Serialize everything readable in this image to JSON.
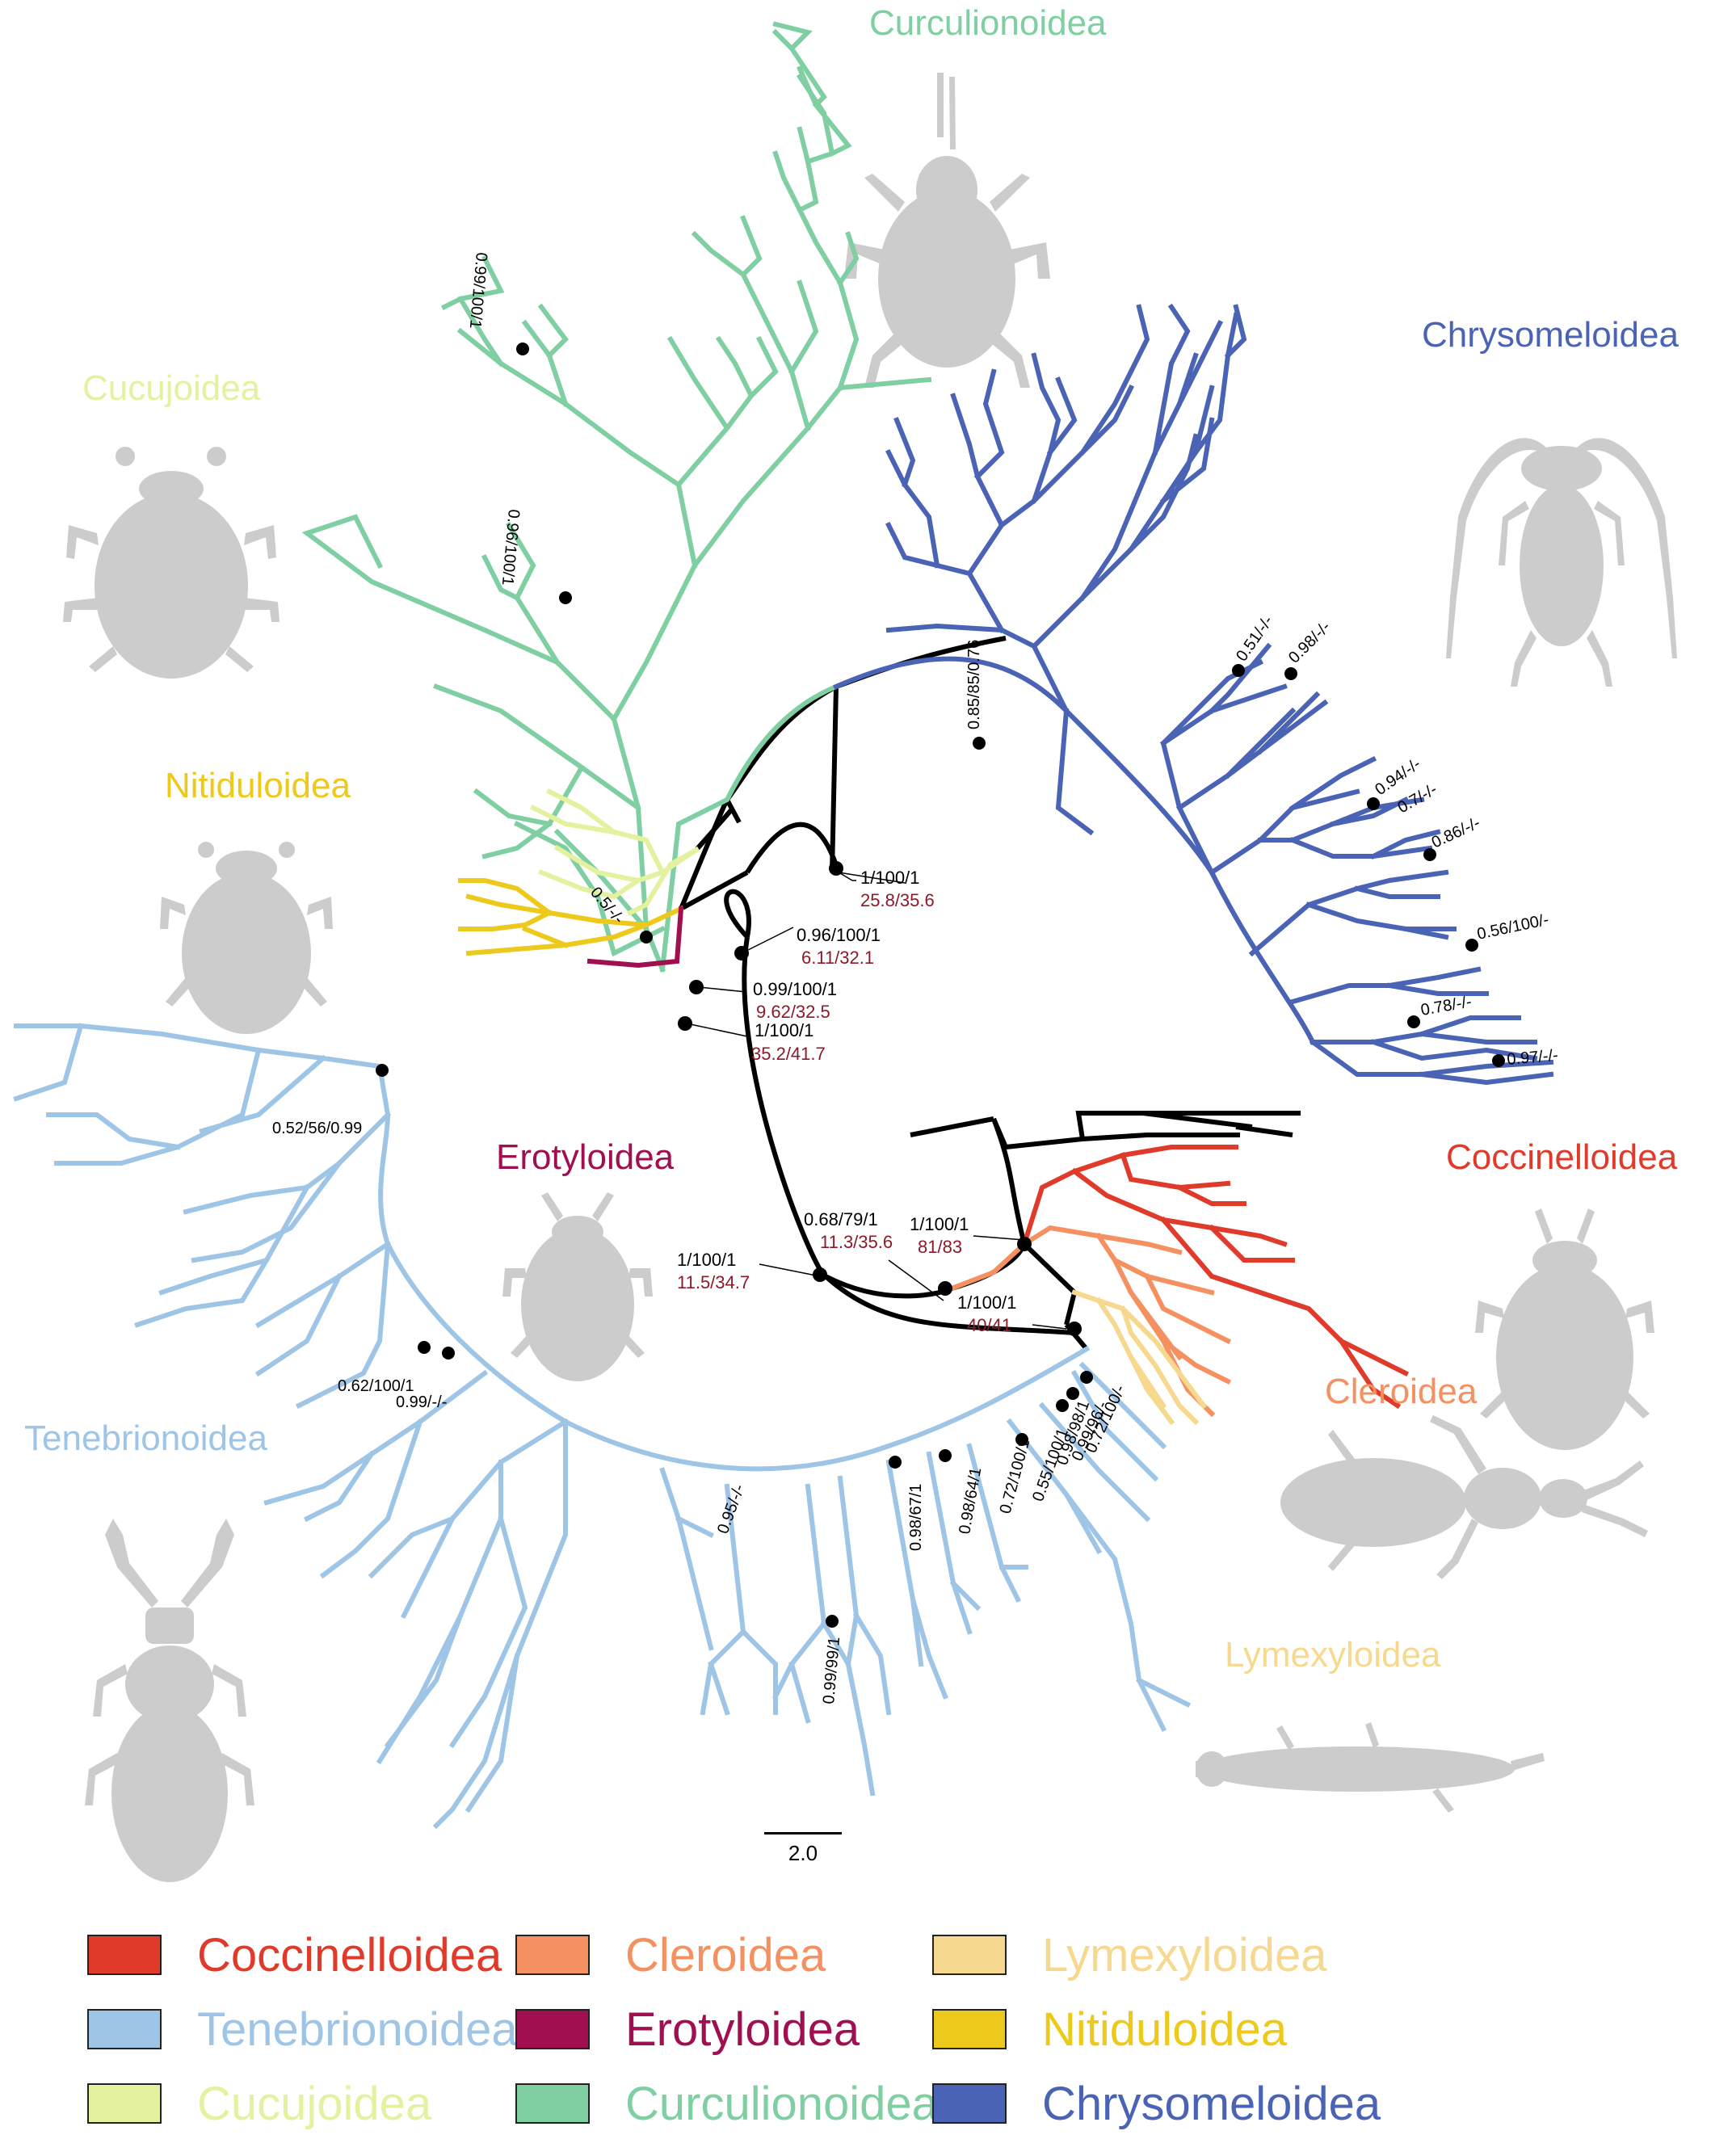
{
  "colors": {
    "coccinelloidea": "#e03a2b",
    "cleroidea": "#f59060",
    "lymexyloidea": "#f6d98e",
    "tenebrionoidea": "#9ec4e6",
    "erotyloidea": "#a01050",
    "nitiduloidea": "#ecc91a",
    "cucujoidea": "#e4f2a0",
    "curculionoidea": "#7fcfa2",
    "chrysomeloidea": "#4a63b5",
    "backbone": "#000000",
    "support_red": "#8b1a2a",
    "silhouette": "#cccccc"
  },
  "clade_labels": {
    "curculionoidea": "Curculionoidea",
    "chrysomeloidea": "Chrysomeloidea",
    "cucujoidea": "Cucujoidea",
    "nitiduloidea": "Nitiduloidea",
    "erotyloidea": "Erotyloidea",
    "coccinelloidea": "Coccinelloidea",
    "cleroidea": "Cleroidea",
    "tenebrionoidea": "Tenebrionoidea",
    "lymexyloidea": "Lymexyloidea"
  },
  "node_support": {
    "n1": {
      "black": "1/100/1",
      "red": "25.8/35.6"
    },
    "n2": {
      "black": "0.96/100/1",
      "red": "6.11/32.1"
    },
    "n3": {
      "black": "0.99/100/1",
      "red": "9.62/32.5"
    },
    "n4": {
      "black": "1/100/1",
      "red": "35.2/41.7"
    },
    "n5": {
      "black": "0.68/79/1",
      "red": "11.3/35.6"
    },
    "n6": {
      "black": "1/100/1",
      "red": "81/83"
    },
    "n7": {
      "black": "1/100/1",
      "red": "11.5/34.7"
    },
    "n8": {
      "black": "1/100/1",
      "red": "40/41"
    }
  },
  "branch_support": [
    "0.99/100/1",
    "0.96/100/1",
    "0.5/-/-",
    "0.85/85/0.76",
    "0.51/-/-",
    "0.98/-/-",
    "0.94/-/-",
    "0.7/-/-",
    "0.86/-/-",
    "0.56/100/-",
    "0.78/-/-",
    "0.97/-/-",
    "0.52/56/0.99",
    "0.62/100/1",
    "0.99/-/-",
    "0.95/-/-",
    "0.98/67/1",
    "0.98/64/1",
    "0.72/100/1",
    "0.55/100/1",
    "0.72/100/-",
    "0.99/96/-",
    "0.98/98/1",
    "0.99/99/1"
  ],
  "scale_bar": {
    "label": "2.0"
  },
  "legend": [
    {
      "key": "coccinelloidea",
      "label": "Coccinelloidea",
      "color": "#e03a2b"
    },
    {
      "key": "cleroidea",
      "label": "Cleroidea",
      "color": "#f59060"
    },
    {
      "key": "lymexyloidea",
      "label": "Lymexyloidea",
      "color": "#f6d98e"
    },
    {
      "key": "tenebrionoidea",
      "label": "Tenebrionoidea",
      "color": "#9ec4e6"
    },
    {
      "key": "erotyloidea",
      "label": "Erotyloidea",
      "color": "#a01050"
    },
    {
      "key": "nitiduloidea",
      "label": "Nitiduloidea",
      "color": "#ecc91a"
    },
    {
      "key": "cucujoidea",
      "label": "Cucujoidea",
      "color": "#e4f2a0"
    },
    {
      "key": "curculionoidea",
      "label": "Curculionoidea",
      "color": "#7fcfa2"
    },
    {
      "key": "chrysomeloidea",
      "label": "Chrysomeloidea",
      "color": "#4a63b5"
    }
  ],
  "silhouettes": [
    "weevil-silhouette",
    "longhorn-beetle-silhouette",
    "round-beetle-silhouette",
    "sap-beetle-silhouette",
    "fungus-beetle-silhouette",
    "ladybird-silhouette",
    "checkered-beetle-silhouette",
    "darkling-beetle-silhouette",
    "ship-timber-beetle-silhouette"
  ]
}
